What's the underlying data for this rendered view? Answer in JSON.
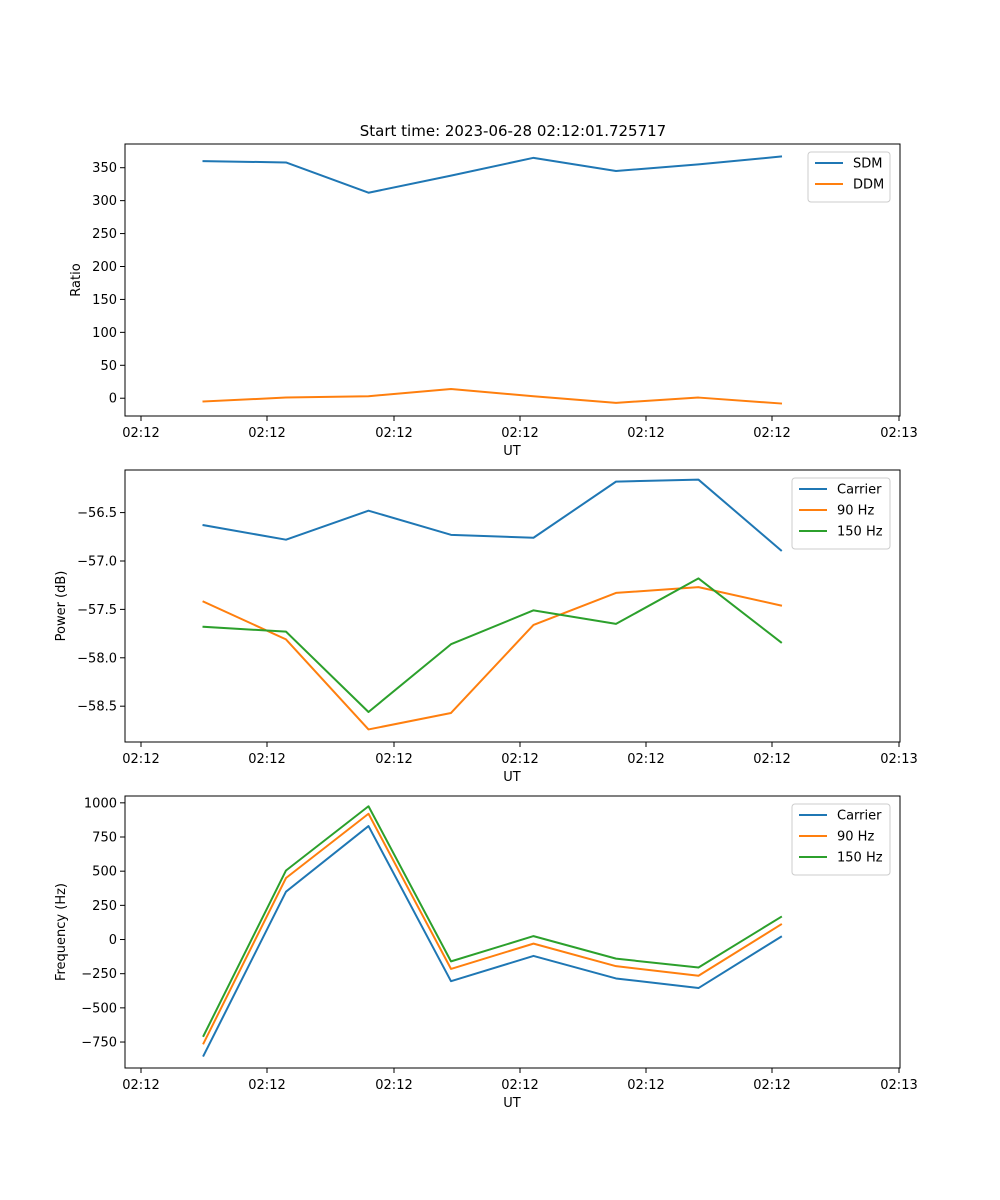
{
  "figure_title": "Start time: 2023-06-28 02:12:01.725717",
  "chart_data": [
    {
      "type": "line",
      "title": "",
      "xlabel": "UT",
      "ylabel": "Ratio",
      "x_tick_labels": [
        "02:12",
        "02:12",
        "02:12",
        "02:12",
        "02:12",
        "02:12",
        "02:13"
      ],
      "y_ticks": [
        0,
        50,
        100,
        150,
        200,
        250,
        300,
        350
      ],
      "ylim": [
        -27,
        386
      ],
      "legend": "top-right",
      "grid": false,
      "series": [
        {
          "name": "SDM",
          "color": "#1f77b4",
          "values": [
            360,
            358,
            312,
            338,
            365,
            345,
            355,
            367
          ]
        },
        {
          "name": "DDM",
          "color": "#ff7f0e",
          "values": [
            -5,
            1,
            3,
            14,
            3,
            -7,
            1,
            -8
          ]
        }
      ]
    },
    {
      "type": "line",
      "title": "",
      "xlabel": "UT",
      "ylabel": "Power (dB)",
      "x_tick_labels": [
        "02:12",
        "02:12",
        "02:12",
        "02:12",
        "02:12",
        "02:12",
        "02:13"
      ],
      "y_ticks": [
        -58.5,
        -58.0,
        -57.5,
        -57.0,
        -56.5
      ],
      "y_tick_labels": [
        "−58.5",
        "−58.0",
        "−57.5",
        "−57.0",
        "−56.5"
      ],
      "ylim": [
        -58.87,
        -56.06
      ],
      "legend": "top-right",
      "grid": false,
      "series": [
        {
          "name": "Carrier",
          "color": "#1f77b4",
          "values": [
            -56.63,
            -56.78,
            -56.48,
            -56.73,
            -56.76,
            -56.18,
            -56.16,
            -56.89
          ]
        },
        {
          "name": "90 Hz",
          "color": "#ff7f0e",
          "values": [
            -57.42,
            -57.81,
            -58.74,
            -58.57,
            -57.66,
            -57.33,
            -57.27,
            -57.46
          ]
        },
        {
          "name": "150 Hz",
          "color": "#2ca02c",
          "values": [
            -57.68,
            -57.73,
            -58.56,
            -57.86,
            -57.51,
            -57.65,
            -57.18,
            -57.84
          ]
        }
      ]
    },
    {
      "type": "line",
      "title": "",
      "xlabel": "UT",
      "ylabel": "Frequency (Hz)",
      "x_tick_labels": [
        "02:12",
        "02:12",
        "02:12",
        "02:12",
        "02:12",
        "02:12",
        "02:13"
      ],
      "y_ticks": [
        -750,
        -500,
        -250,
        0,
        250,
        500,
        750,
        1000
      ],
      "y_tick_labels": [
        "−750",
        "−500",
        "−250",
        "0",
        "250",
        "500",
        "750",
        "1000"
      ],
      "ylim": [
        -940,
        1050
      ],
      "legend": "top-right",
      "grid": false,
      "series": [
        {
          "name": "Carrier",
          "color": "#1f77b4",
          "values": [
            -850,
            350,
            830,
            -305,
            -120,
            -285,
            -355,
            20
          ]
        },
        {
          "name": "90 Hz",
          "color": "#ff7f0e",
          "values": [
            -760,
            450,
            920,
            -215,
            -30,
            -195,
            -265,
            110
          ]
        },
        {
          "name": "150 Hz",
          "color": "#2ca02c",
          "values": [
            -705,
            505,
            975,
            -160,
            25,
            -140,
            -205,
            165
          ]
        }
      ]
    }
  ]
}
